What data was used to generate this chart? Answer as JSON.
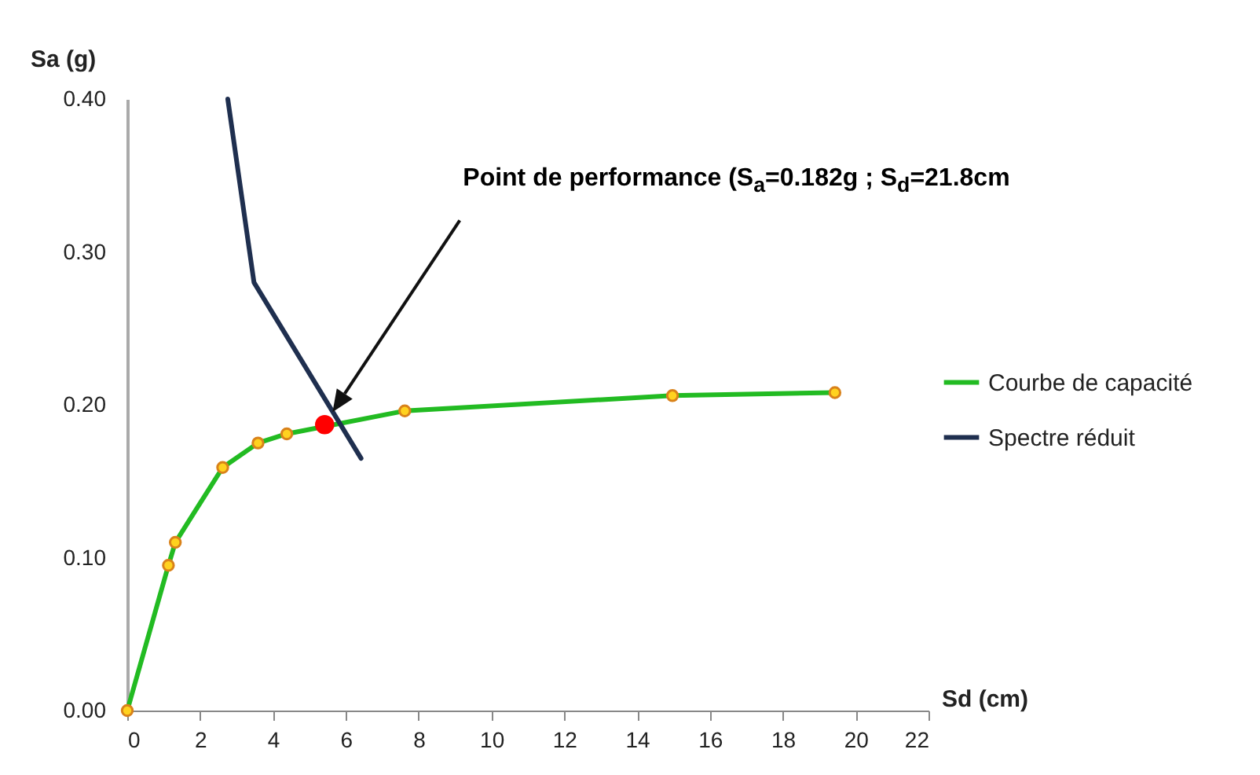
{
  "chart_data": {
    "type": "line",
    "xlabel": "Sd (cm)",
    "ylabel": "Sa (g)",
    "xlim": [
      0,
      22
    ],
    "xticks": [
      0,
      2,
      4,
      6,
      8,
      10,
      12,
      14,
      16,
      18,
      20,
      22
    ],
    "ylim": [
      0,
      0.4
    ],
    "yticks": [
      {
        "value": 0,
        "label": "0.00"
      },
      {
        "value": 0.1,
        "label": "0.10"
      },
      {
        "value": 0.2,
        "label": "0.20"
      },
      {
        "value": 0.3,
        "label": "0.30"
      },
      {
        "value": 0.4,
        "label": "0.40"
      }
    ],
    "grid": false,
    "legend": "right",
    "annotations": [
      "Point de performance (S$_{a}$=0.182g ; S$_{d}$=21.8cm"
    ],
    "series": [
      {
        "name": "Courbe de capacité",
        "marker": "circle",
        "color": "#22bb22",
        "x": [
          0,
          1.13,
          1.32,
          2.62,
          3.59,
          4.38,
          7.62,
          14.97,
          19.43
        ],
        "values": [
          0,
          0.095,
          0.11,
          0.159,
          0.175,
          0.181,
          0.196,
          0.206,
          0.208
        ]
      },
      {
        "name": "Spectre réduit",
        "marker": "none",
        "color": "#1f2f4f",
        "x": [
          2.76,
          3.48,
          6.42
        ],
        "values": [
          0.4,
          0.28,
          0.165
        ]
      },
      {
        "type": "scatter",
        "marker": "circle",
        "color": "#ff0000",
        "x": [
          5.42
        ],
        "values": [
          0.187
        ]
      }
    ]
  }
}
